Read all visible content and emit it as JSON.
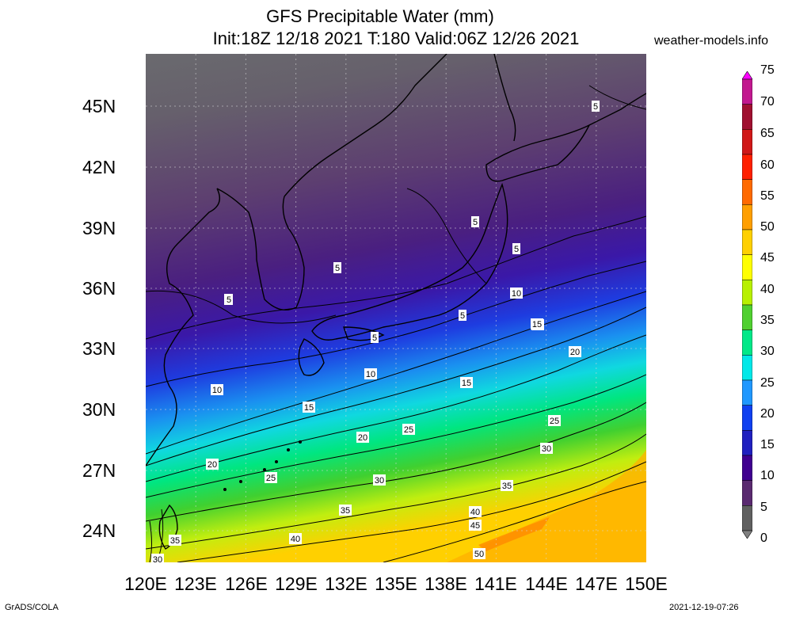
{
  "title": {
    "line1": "GFS Precipitable Water (mm)",
    "line2": "Init:18Z 12/18 2021 T:180 Valid:06Z 12/26 2021"
  },
  "site_label": "weather-models.info",
  "lat_labels": [
    "45N",
    "42N",
    "39N",
    "36N",
    "33N",
    "30N",
    "27N",
    "24N"
  ],
  "lon_labels": [
    "120E",
    "123E",
    "126E",
    "129E",
    "132E",
    "135E",
    "138E",
    "141E",
    "144E",
    "147E",
    "150E"
  ],
  "colorbar_labels": [
    "75",
    "70",
    "65",
    "60",
    "55",
    "50",
    "45",
    "40",
    "35",
    "30",
    "25",
    "20",
    "15",
    "10",
    "5",
    "0"
  ],
  "colorbar_colors": [
    "#ff00ff",
    "#c2188f",
    "#a01030",
    "#d01818",
    "#ff2000",
    "#ff6a00",
    "#ff9f00",
    "#ffd000",
    "#ffff00",
    "#b8f000",
    "#50d030",
    "#00e888",
    "#00e8e8",
    "#2098ff",
    "#1040f0",
    "#2020c0",
    "#400090",
    "#5a2a70",
    "#606060",
    "#808080"
  ],
  "contour_labels": [
    "5",
    "5",
    "5",
    "5",
    "5",
    "5",
    "5",
    "5",
    "10",
    "10",
    "10",
    "10",
    "15",
    "15",
    "15",
    "20",
    "20",
    "20",
    "20",
    "25",
    "25",
    "25",
    "30",
    "30",
    "30",
    "35",
    "35",
    "35",
    "40",
    "40",
    "45",
    "50"
  ],
  "credit": "GrADS/COLA",
  "timestamp": "2021-12-19-07:26"
}
